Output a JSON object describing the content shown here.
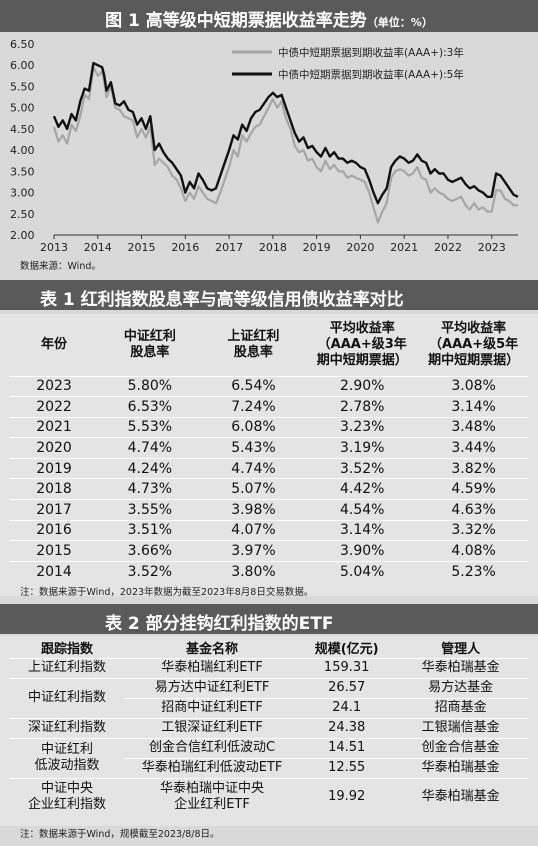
{
  "figure": {
    "title_main": "图 1  高等级中短期票据收益率走势",
    "title_unit": "（单位：%）",
    "source_note": "数据来源：Wind。"
  },
  "chart_data": {
    "type": "line",
    "title": "高等级中短期票据收益率走势",
    "ylabel": "",
    "xlabel": "",
    "ylim": [
      2.0,
      6.5
    ],
    "y_ticks": [
      "2.00",
      "2.50",
      "3.00",
      "3.50",
      "4.00",
      "4.50",
      "5.00",
      "5.50",
      "6.00",
      "6.50"
    ],
    "x_ticks": [
      "2013",
      "2014",
      "2015",
      "2016",
      "2017",
      "2018",
      "2019",
      "2020",
      "2021",
      "2022",
      "2023"
    ],
    "xlim": [
      2013.0,
      2023.6
    ],
    "grid": "none",
    "legend_position": "top-right",
    "series": [
      {
        "name": "中债中短期票据到期收益率(AAA+):3年",
        "color": "#a6a6a6",
        "x": [
          2013.0,
          2013.1,
          2013.2,
          2013.3,
          2013.4,
          2013.5,
          2013.6,
          2013.7,
          2013.8,
          2013.9,
          2014.0,
          2014.1,
          2014.15,
          2014.2,
          2014.3,
          2014.4,
          2014.5,
          2014.6,
          2014.7,
          2014.8,
          2014.9,
          2015.0,
          2015.1,
          2015.2,
          2015.3,
          2015.4,
          2015.5,
          2015.6,
          2015.7,
          2015.8,
          2015.9,
          2016.0,
          2016.1,
          2016.2,
          2016.3,
          2016.4,
          2016.5,
          2016.6,
          2016.7,
          2016.8,
          2016.9,
          2017.0,
          2017.1,
          2017.2,
          2017.3,
          2017.4,
          2017.5,
          2017.6,
          2017.7,
          2017.8,
          2017.9,
          2018.0,
          2018.1,
          2018.2,
          2018.3,
          2018.4,
          2018.5,
          2018.6,
          2018.7,
          2018.8,
          2018.9,
          2019.0,
          2019.1,
          2019.2,
          2019.3,
          2019.4,
          2019.5,
          2019.6,
          2019.7,
          2019.8,
          2019.9,
          2020.0,
          2020.1,
          2020.2,
          2020.3,
          2020.4,
          2020.5,
          2020.6,
          2020.7,
          2020.8,
          2020.9,
          2021.0,
          2021.1,
          2021.2,
          2021.3,
          2021.4,
          2021.5,
          2021.6,
          2021.7,
          2021.8,
          2021.9,
          2022.0,
          2022.1,
          2022.2,
          2022.3,
          2022.4,
          2022.5,
          2022.6,
          2022.7,
          2022.8,
          2022.9,
          2023.0,
          2023.1,
          2023.2,
          2023.3,
          2023.4,
          2023.5,
          2023.6
        ],
        "values": [
          4.55,
          4.2,
          4.35,
          4.15,
          4.6,
          4.45,
          4.8,
          5.3,
          5.2,
          5.95,
          5.75,
          5.85,
          5.6,
          5.25,
          5.5,
          5.0,
          4.95,
          4.8,
          4.75,
          4.7,
          4.3,
          4.5,
          4.3,
          4.55,
          3.65,
          3.8,
          3.7,
          3.6,
          3.4,
          3.3,
          3.1,
          2.8,
          3.0,
          2.85,
          3.15,
          3.0,
          2.85,
          2.8,
          2.75,
          3.0,
          3.3,
          3.6,
          4.0,
          3.85,
          4.35,
          4.2,
          4.4,
          4.55,
          4.6,
          4.8,
          5.0,
          5.2,
          5.0,
          5.15,
          4.75,
          4.5,
          4.1,
          3.95,
          4.0,
          3.75,
          3.8,
          3.6,
          3.5,
          3.75,
          3.55,
          3.65,
          3.5,
          3.5,
          3.35,
          3.4,
          3.35,
          3.3,
          3.25,
          3.0,
          2.65,
          2.3,
          2.55,
          2.75,
          3.35,
          3.5,
          3.55,
          3.5,
          3.4,
          3.45,
          3.6,
          3.35,
          3.3,
          3.0,
          3.1,
          3.0,
          2.95,
          2.85,
          2.8,
          2.85,
          2.9,
          2.7,
          2.6,
          2.75,
          2.6,
          2.65,
          2.55,
          2.55,
          3.05,
          3.05,
          2.85,
          2.8,
          2.7,
          2.7
        ]
      },
      {
        "name": "中债中短期票据到期收益率(AAA+):5年",
        "color": "#111111",
        "x": [
          2013.0,
          2013.1,
          2013.2,
          2013.3,
          2013.4,
          2013.5,
          2013.6,
          2013.7,
          2013.8,
          2013.9,
          2014.0,
          2014.1,
          2014.15,
          2014.2,
          2014.3,
          2014.4,
          2014.5,
          2014.6,
          2014.7,
          2014.8,
          2014.9,
          2015.0,
          2015.1,
          2015.2,
          2015.3,
          2015.4,
          2015.5,
          2015.6,
          2015.7,
          2015.8,
          2015.9,
          2016.0,
          2016.1,
          2016.2,
          2016.3,
          2016.4,
          2016.5,
          2016.6,
          2016.7,
          2016.8,
          2016.9,
          2017.0,
          2017.1,
          2017.2,
          2017.3,
          2017.4,
          2017.5,
          2017.6,
          2017.7,
          2017.8,
          2017.9,
          2018.0,
          2018.1,
          2018.2,
          2018.3,
          2018.4,
          2018.5,
          2018.6,
          2018.7,
          2018.8,
          2018.9,
          2019.0,
          2019.1,
          2019.2,
          2019.3,
          2019.4,
          2019.5,
          2019.6,
          2019.7,
          2019.8,
          2019.9,
          2020.0,
          2020.1,
          2020.2,
          2020.3,
          2020.4,
          2020.5,
          2020.6,
          2020.7,
          2020.8,
          2020.9,
          2021.0,
          2021.1,
          2021.2,
          2021.3,
          2021.4,
          2021.5,
          2021.6,
          2021.7,
          2021.8,
          2021.9,
          2022.0,
          2022.1,
          2022.2,
          2022.3,
          2022.4,
          2022.5,
          2022.6,
          2022.7,
          2022.8,
          2022.9,
          2023.0,
          2023.1,
          2023.2,
          2023.3,
          2023.4,
          2023.5,
          2023.6
        ],
        "values": [
          4.8,
          4.55,
          4.7,
          4.5,
          4.85,
          4.7,
          5.15,
          5.45,
          5.4,
          6.05,
          6.0,
          5.95,
          5.75,
          5.4,
          5.6,
          5.1,
          5.05,
          5.15,
          4.95,
          4.9,
          4.6,
          4.75,
          4.5,
          4.8,
          4.0,
          4.15,
          3.95,
          3.8,
          3.7,
          3.55,
          3.4,
          3.0,
          3.25,
          3.1,
          3.45,
          3.3,
          3.1,
          3.05,
          3.1,
          3.4,
          3.7,
          4.0,
          4.35,
          4.25,
          4.6,
          4.45,
          4.75,
          4.9,
          4.95,
          5.1,
          5.25,
          5.35,
          5.25,
          5.3,
          5.0,
          4.7,
          4.4,
          4.2,
          4.3,
          4.05,
          4.1,
          3.95,
          3.85,
          4.05,
          3.85,
          3.95,
          3.8,
          3.8,
          3.7,
          3.75,
          3.7,
          3.6,
          3.55,
          3.3,
          3.0,
          2.75,
          2.95,
          3.1,
          3.6,
          3.75,
          3.85,
          3.8,
          3.7,
          3.75,
          3.9,
          3.75,
          3.7,
          3.45,
          3.55,
          3.45,
          3.45,
          3.3,
          3.25,
          3.3,
          3.35,
          3.2,
          3.1,
          3.15,
          3.05,
          3.0,
          2.9,
          2.9,
          3.45,
          3.4,
          3.25,
          3.1,
          2.95,
          2.9
        ]
      }
    ]
  },
  "table1": {
    "title_main": "表 1  红利指数股息率与高等级信用债收益率对比",
    "headers": [
      "年份",
      "中证红利\n股息率",
      "上证红利\n股息率",
      "平均收益率\n（AAA+级3年\n期中短期票据）",
      "平均收益率\n（AAA+级5年\n期中短期票据）"
    ],
    "rows": [
      [
        "2023",
        "5.80%",
        "6.54%",
        "2.90%",
        "3.08%"
      ],
      [
        "2022",
        "6.53%",
        "7.24%",
        "2.78%",
        "3.14%"
      ],
      [
        "2021",
        "5.53%",
        "6.08%",
        "3.23%",
        "3.48%"
      ],
      [
        "2020",
        "4.74%",
        "5.43%",
        "3.19%",
        "3.44%"
      ],
      [
        "2019",
        "4.24%",
        "4.74%",
        "3.52%",
        "3.82%"
      ],
      [
        "2018",
        "4.73%",
        "5.07%",
        "4.42%",
        "4.59%"
      ],
      [
        "2017",
        "3.55%",
        "3.98%",
        "4.54%",
        "4.63%"
      ],
      [
        "2016",
        "3.51%",
        "4.07%",
        "3.14%",
        "3.32%"
      ],
      [
        "2015",
        "3.66%",
        "3.97%",
        "3.90%",
        "4.08%"
      ],
      [
        "2014",
        "3.52%",
        "3.80%",
        "5.04%",
        "5.23%"
      ]
    ],
    "note": "注：数据来源于Wind，2023年数据为截至2023年8月8日交易数据。"
  },
  "table2": {
    "title_main": "表 2  部分挂钩红利指数的ETF",
    "headers": [
      "跟踪指数",
      "基金名称",
      "规模(亿元)",
      "管理人"
    ],
    "rows": [
      {
        "index": "上证红利指数",
        "fund": "华泰柏瑞红利ETF",
        "size": "159.31",
        "manager": "华泰柏瑞基金"
      },
      {
        "index": "中证红利指数",
        "fund": "易方达中证红利ETF",
        "size": "26.57",
        "manager": "易方达基金"
      },
      {
        "index": "",
        "fund": "招商中证红利ETF",
        "size": "24.1",
        "manager": "招商基金"
      },
      {
        "index": "深证红利指数",
        "fund": "工银深证红利ETF",
        "size": "24.38",
        "manager": "工银瑞信基金"
      },
      {
        "index": "中证红利\n低波动指数",
        "fund": "创金合信红利低波动C",
        "size": "14.51",
        "manager": "创金合信基金"
      },
      {
        "index": "",
        "fund": "华泰柏瑞红利低波动ETF",
        "size": "12.55",
        "manager": "华泰柏瑞基金"
      },
      {
        "index": "中证中央\n企业红利指数",
        "fund": "华泰柏瑞中证中央\n企业红利ETF",
        "size": "19.92",
        "manager": "华泰柏瑞基金"
      }
    ],
    "note": "注：数据来源于Wind，规模截至2023/8/8日。"
  }
}
